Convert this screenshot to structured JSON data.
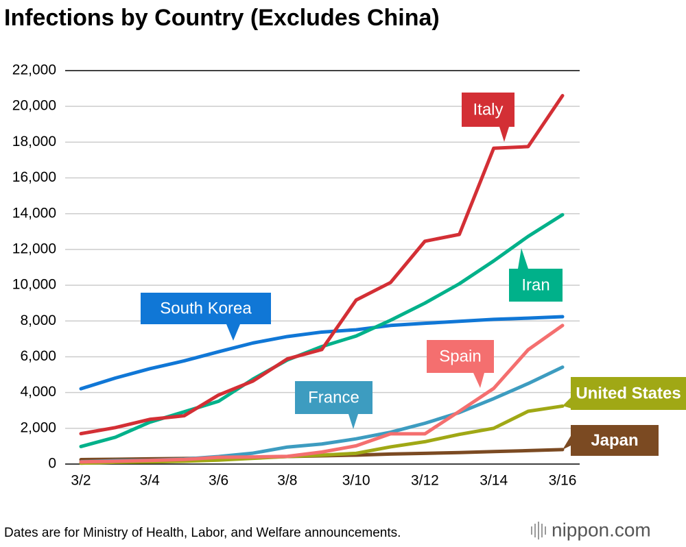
{
  "chart_data": {
    "type": "line",
    "title": "Infections by Country (Excludes China)",
    "note": "Dates are for Ministry of Health, Labor, and Welfare announcements.",
    "brand": "nippon.com",
    "categories": [
      "3/2",
      null,
      "3/4",
      null,
      "3/6",
      null,
      "3/8",
      null,
      "3/10",
      null,
      "3/12",
      null,
      "3/14",
      null,
      "3/16"
    ],
    "ylim": [
      0,
      22000
    ],
    "yticks": [
      0,
      {
        "value": 2000,
        "label": "2,000"
      },
      {
        "value": 4000,
        "label": "4,000"
      },
      {
        "value": 6000,
        "label": "6,000"
      },
      {
        "value": 8000,
        "label": "8,000"
      },
      {
        "value": 10000,
        "label": "10,000"
      },
      {
        "value": 12000,
        "label": "12,000"
      },
      {
        "value": 14000,
        "label": "14,000"
      },
      {
        "value": 16000,
        "label": "16,000"
      },
      {
        "value": 18000,
        "label": "18,000"
      },
      {
        "value": 20000,
        "label": "20,000"
      },
      {
        "value": 22000,
        "label": "22,000"
      }
    ],
    "grid": true,
    "series": [
      {
        "name": "Japan",
        "color": "#7b4a22",
        "values": [
          250,
          270,
          290,
          310,
          340,
          360,
          420,
          460,
          500,
          560,
          600,
          640,
          700,
          750,
          810
        ]
      },
      {
        "name": "United States",
        "color": "#a0a815",
        "values": [
          50,
          100,
          120,
          160,
          220,
          320,
          420,
          500,
          600,
          960,
          1250,
          1660,
          2000,
          2950,
          3240
        ]
      },
      {
        "name": "France",
        "color": "#3d9cc0",
        "values": [
          130,
          190,
          210,
          280,
          420,
          610,
          950,
          1120,
          1410,
          1780,
          2280,
          2880,
          3660,
          4500,
          5420
        ]
      },
      {
        "name": "Spain",
        "color": "#f46f6f",
        "values": [
          120,
          160,
          200,
          260,
          380,
          400,
          430,
          670,
          1020,
          1690,
          1690,
          2950,
          4230,
          6390,
          7750
        ]
      },
      {
        "name": "South Korea",
        "color": "#1077d6",
        "values": [
          4210,
          4810,
          5330,
          5770,
          6280,
          6770,
          7130,
          7380,
          7510,
          7750,
          7870,
          7980,
          8090,
          8160,
          8240
        ]
      },
      {
        "name": "Iran",
        "color": "#00b18a",
        "values": [
          980,
          1500,
          2340,
          2920,
          3510,
          4750,
          5820,
          6570,
          7160,
          8040,
          9000,
          10080,
          11360,
          12730,
          13940
        ]
      },
      {
        "name": "Italy",
        "color": "#d32f35",
        "values": [
          1700,
          2040,
          2500,
          2700,
          3860,
          4640,
          5880,
          6400,
          9170,
          10150,
          12460,
          12840,
          17660,
          17750,
          20600
        ]
      }
    ]
  }
}
